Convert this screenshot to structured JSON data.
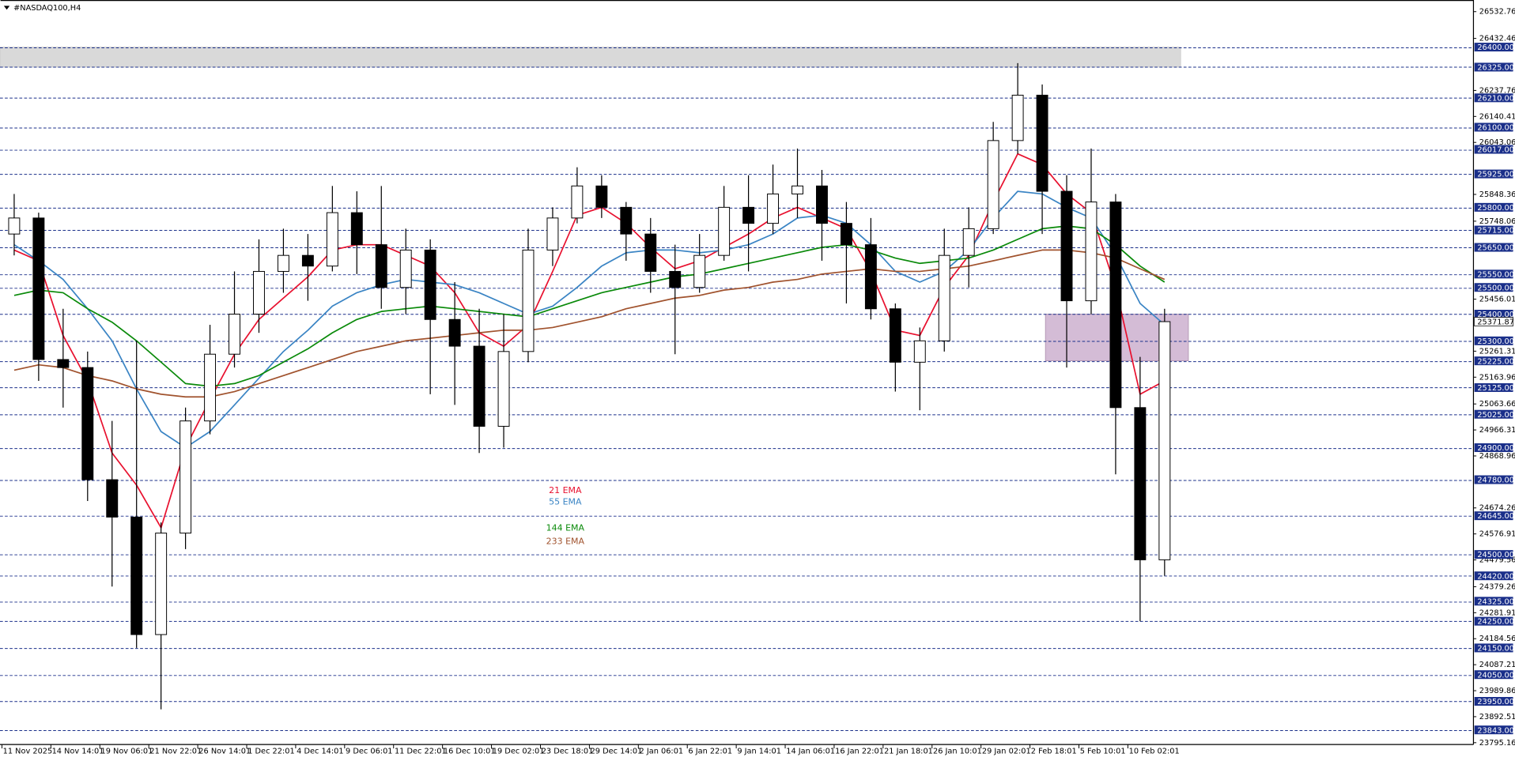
{
  "chart_data": {
    "type": "candlestick",
    "title": "#NASDAQ100,H4",
    "categories": [
      "11 Nov 2025",
      null,
      "14 Nov 14:01",
      null,
      "19 Nov 06:01",
      null,
      "21 Nov 22:01",
      null,
      "26 Nov 14:01",
      null,
      "1 Dec 22:01",
      null,
      "4 Dec 14:01",
      null,
      "9 Dec 06:01",
      null,
      "11 Dec 22:01",
      null,
      "16 Dec 10:01",
      null,
      "19 Dec 02:01",
      null,
      "23 Dec 18:01",
      null,
      "29 Dec 14:01",
      null,
      "2 Jan 06:01",
      null,
      "6 Jan 22:01",
      null,
      "9 Jan 14:01",
      null,
      "14 Jan 06:01",
      null,
      "16 Jan 22:01",
      null,
      "21 Jan 18:01",
      null,
      "26 Jan 10:01",
      null,
      "29 Jan 02:01",
      null,
      "2 Feb 18:01",
      null,
      "5 Feb 10:01",
      null,
      "10 Feb 02:01",
      null
    ],
    "ohlc": [
      [
        25700,
        25850,
        25620,
        25760
      ],
      [
        25760,
        25780,
        25150,
        25230
      ],
      [
        25230,
        25420,
        25050,
        25200
      ],
      [
        25200,
        25260,
        24700,
        24780
      ],
      [
        24780,
        25000,
        24380,
        24640
      ],
      [
        24640,
        25300,
        24150,
        24200
      ],
      [
        24200,
        24620,
        23920,
        24580
      ],
      [
        24580,
        25050,
        24520,
        25000
      ],
      [
        25000,
        25360,
        24950,
        25250
      ],
      [
        25250,
        25560,
        25200,
        25400
      ],
      [
        25400,
        25680,
        25330,
        25560
      ],
      [
        25560,
        25720,
        25480,
        25620
      ],
      [
        25620,
        25700,
        25450,
        25580
      ],
      [
        25580,
        25880,
        25560,
        25780
      ],
      [
        25780,
        25860,
        25550,
        25660
      ],
      [
        25660,
        25880,
        25420,
        25500
      ],
      [
        25500,
        25720,
        25400,
        25640
      ],
      [
        25640,
        25680,
        25100,
        25380
      ],
      [
        25380,
        25520,
        25060,
        25280
      ],
      [
        25280,
        25420,
        24880,
        24980
      ],
      [
        24980,
        25400,
        24900,
        25260
      ],
      [
        25260,
        25720,
        25220,
        25640
      ],
      [
        25640,
        25800,
        25580,
        25760
      ],
      [
        25760,
        25950,
        25740,
        25880
      ],
      [
        25880,
        25920,
        25760,
        25800
      ],
      [
        25800,
        25820,
        25600,
        25700
      ],
      [
        25700,
        25760,
        25480,
        25560
      ],
      [
        25560,
        25660,
        25250,
        25500
      ],
      [
        25500,
        25700,
        25480,
        25620
      ],
      [
        25620,
        25880,
        25600,
        25800
      ],
      [
        25800,
        25920,
        25560,
        25740
      ],
      [
        25740,
        25960,
        25700,
        25850
      ],
      [
        25850,
        26020,
        25760,
        25880
      ],
      [
        25880,
        25940,
        25600,
        25740
      ],
      [
        25740,
        25820,
        25440,
        25660
      ],
      [
        25660,
        25760,
        25380,
        25420
      ],
      [
        25420,
        25440,
        25110,
        25220
      ],
      [
        25220,
        25350,
        25040,
        25300
      ],
      [
        25300,
        25720,
        25260,
        25620
      ],
      [
        25620,
        25800,
        25500,
        25720
      ],
      [
        25720,
        26120,
        25700,
        26050
      ],
      [
        26050,
        26340,
        26000,
        26220
      ],
      [
        26220,
        26260,
        25700,
        25860
      ],
      [
        25860,
        25920,
        25200,
        25450
      ],
      [
        25450,
        26020,
        25400,
        25820
      ],
      [
        25820,
        25850,
        24800,
        25050
      ],
      [
        25050,
        25240,
        24250,
        24480
      ],
      [
        24480,
        25420,
        24420,
        25371.87
      ]
    ],
    "up_color": "#ffffff",
    "down_color": "#000000",
    "series": [
      {
        "name": "21 EMA",
        "color": "#e8102e",
        "values": [
          25640,
          25600,
          25320,
          25150,
          24880,
          24760,
          24600,
          24900,
          25080,
          25250,
          25380,
          25460,
          25540,
          25640,
          25660,
          25660,
          25620,
          25580,
          25480,
          25330,
          25280,
          25360,
          25560,
          25770,
          25800,
          25740,
          25650,
          25570,
          25600,
          25650,
          25700,
          25760,
          25800,
          25760,
          25720,
          25560,
          25340,
          25320,
          25500,
          25620,
          25820,
          26000,
          25960,
          25850,
          25780,
          25500,
          25100,
          25150
        ]
      },
      {
        "name": "55 EMA",
        "color": "#3a84c4",
        "values": [
          25660,
          25600,
          25530,
          25420,
          25300,
          25120,
          24960,
          24900,
          24960,
          25060,
          25160,
          25260,
          25340,
          25430,
          25480,
          25510,
          25530,
          25520,
          25510,
          25480,
          25440,
          25400,
          25430,
          25500,
          25580,
          25630,
          25640,
          25640,
          25630,
          25640,
          25660,
          25700,
          25760,
          25770,
          25740,
          25660,
          25560,
          25520,
          25560,
          25640,
          25760,
          25860,
          25850,
          25800,
          25760,
          25620,
          25440,
          25360
        ]
      },
      {
        "name": "144 EMA",
        "color": "#0a8a0a",
        "values": [
          25470,
          25490,
          25480,
          25420,
          25370,
          25300,
          25220,
          25140,
          25130,
          25140,
          25170,
          25220,
          25270,
          25330,
          25380,
          25410,
          25420,
          25430,
          25420,
          25410,
          25400,
          25390,
          25420,
          25450,
          25480,
          25500,
          25520,
          25540,
          25550,
          25570,
          25590,
          25610,
          25630,
          25650,
          25660,
          25640,
          25610,
          25590,
          25600,
          25610,
          25640,
          25680,
          25720,
          25730,
          25720,
          25660,
          25580,
          25520
        ]
      },
      {
        "name": "233 EMA",
        "color": "#a0522d",
        "values": [
          25190,
          25210,
          25200,
          25170,
          25150,
          25120,
          25100,
          25090,
          25090,
          25110,
          25140,
          25170,
          25200,
          25230,
          25260,
          25280,
          25300,
          25310,
          25320,
          25330,
          25340,
          25340,
          25350,
          25370,
          25390,
          25420,
          25440,
          25460,
          25470,
          25490,
          25500,
          25520,
          25530,
          25550,
          25560,
          25570,
          25560,
          25560,
          25570,
          25580,
          25600,
          25620,
          25640,
          25640,
          25630,
          25610,
          25570,
          25530
        ]
      }
    ],
    "ylim": [
      23788.2,
      26576.2
    ],
    "yticks": [
      26532.76,
      26432.46,
      26237.76,
      26140.41,
      26043.06,
      25848.36,
      25748.06,
      25456.01,
      25261.31,
      25163.96,
      25063.66,
      24966.31,
      24868.96,
      24674.26,
      24576.91,
      24479.56,
      24379.26,
      24281.91,
      24184.56,
      24087.21,
      23989.86,
      23892.51,
      23795.16
    ],
    "levels": [
      {
        "value": 26400,
        "label": "26400.00"
      },
      {
        "value": 26325,
        "label": "26325.00"
      },
      {
        "value": 26210,
        "label": "26210.00"
      },
      {
        "value": 26100,
        "label": "26100.00"
      },
      {
        "value": 26017,
        "label": "26017.00"
      },
      {
        "value": 25925,
        "label": "25925.00"
      },
      {
        "value": 25800,
        "label": "25800.00"
      },
      {
        "value": 25715,
        "label": "25715.00"
      },
      {
        "value": 25650,
        "label": "25650.00"
      },
      {
        "value": 25550,
        "label": "25550.00"
      },
      {
        "value": 25500,
        "label": "25500.00"
      },
      {
        "value": 25400,
        "label": "25400.00"
      },
      {
        "value": 25300,
        "label": "25300.00"
      },
      {
        "value": 25225,
        "label": "25225.00"
      },
      {
        "value": 25125,
        "label": "25125.00"
      },
      {
        "value": 25025,
        "label": "25025.00"
      },
      {
        "value": 24900,
        "label": "24900.00"
      },
      {
        "value": 24780,
        "label": "24780.00"
      },
      {
        "value": 24645,
        "label": "24645.00"
      },
      {
        "value": 24500,
        "label": "24500.00"
      },
      {
        "value": 24420,
        "label": "24420.00"
      },
      {
        "value": 24325,
        "label": "24325.00"
      },
      {
        "value": 24250,
        "label": "24250.00"
      },
      {
        "value": 24150,
        "label": "24150.00"
      },
      {
        "value": 24050,
        "label": "24050.00"
      },
      {
        "value": 23950,
        "label": "23950.00"
      },
      {
        "value": 23843,
        "label": "23843.00"
      }
    ],
    "level_color": "#1a2f8a",
    "zones": [
      {
        "from": 26325,
        "to": 26400,
        "color": "#d9d9d9"
      },
      {
        "from": 25225,
        "to": 25400,
        "color": "#d4bcd6"
      }
    ]
  }
}
